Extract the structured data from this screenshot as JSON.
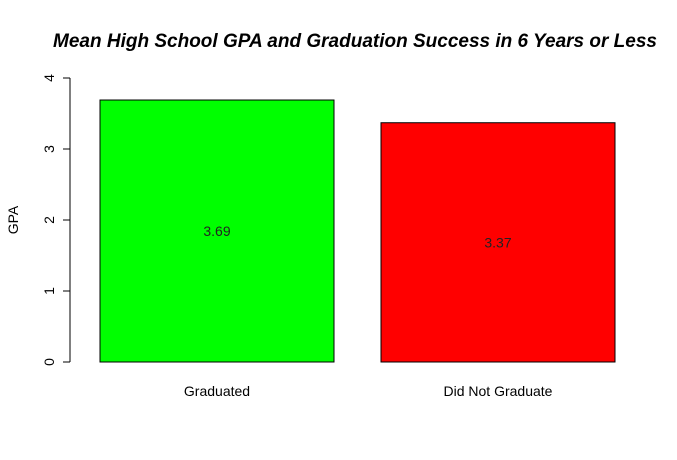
{
  "chart_data": {
    "type": "bar",
    "title": "Mean High School GPA and Graduation Success in 6 Years or Less",
    "xlabel": "",
    "ylabel": "GPA",
    "categories": [
      "Graduated",
      "Did Not Graduate"
    ],
    "values": [
      3.69,
      3.37
    ],
    "value_labels": [
      "3.69",
      "3.37"
    ],
    "colors": [
      "#00ff00",
      "#ff0000"
    ],
    "ylim": [
      0,
      4
    ],
    "yticks": [
      0,
      1,
      2,
      3,
      4
    ],
    "ytick_labels": [
      "0",
      "1",
      "2",
      "3",
      "4"
    ],
    "grid": false,
    "legend": "none"
  }
}
